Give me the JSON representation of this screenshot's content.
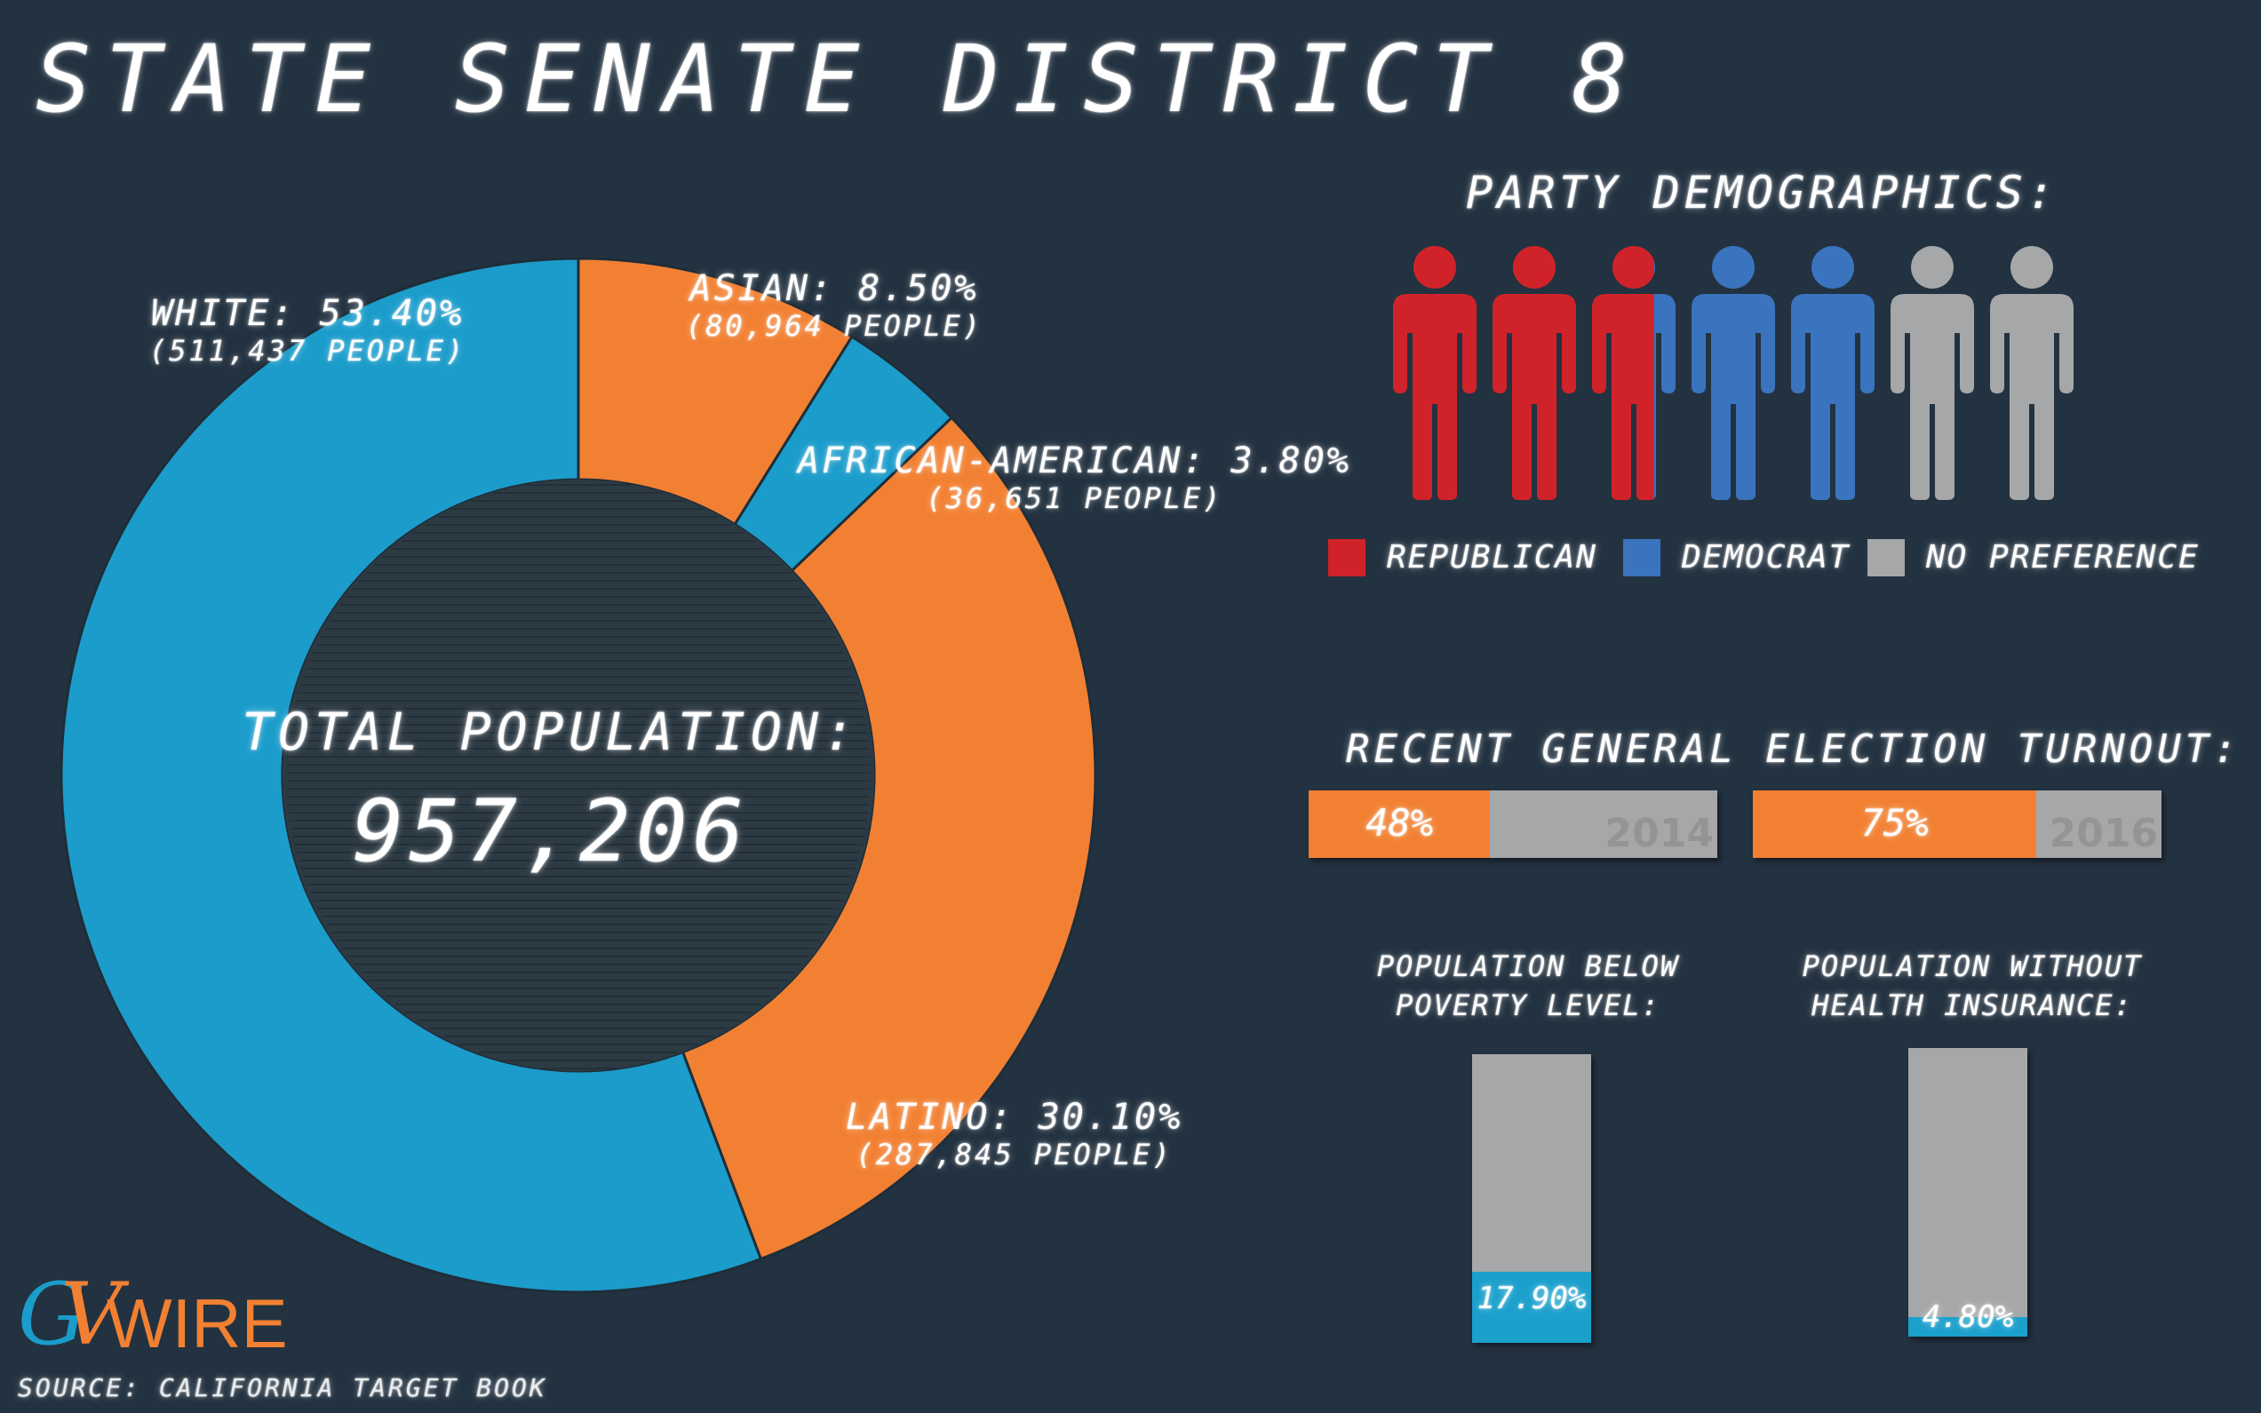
{
  "title": "STATE SENATE DISTRICT 8",
  "chart_data": [
    {
      "type": "pie",
      "center_label": "TOTAL POPULATION:",
      "center_value": "957,206",
      "slices": [
        {
          "name": "ASIAN",
          "value": 8.5,
          "pct_label": "ASIAN: 8.50%",
          "people_label": "(80,964 PEOPLE)",
          "color": "#f28032"
        },
        {
          "name": "AFRICAN-AMERICAN",
          "value": 3.8,
          "pct_label": "AFRICAN-AMERICAN: 3.80%",
          "people_label": "(36,651 PEOPLE)",
          "color": "#1b9ccb"
        },
        {
          "name": "LATINO",
          "value": 30.1,
          "pct_label": "LATINO: 30.10%",
          "people_label": "(287,845 PEOPLE)",
          "color": "#f28032"
        },
        {
          "name": "WHITE",
          "value": 53.4,
          "pct_label": "WHITE: 53.40%",
          "people_label": "(511,437 PEOPLE)",
          "color": "#1b9ccb"
        }
      ]
    },
    {
      "type": "bar",
      "title": "RECENT GENERAL ELECTION TURNOUT:",
      "categories": [
        "2014",
        "2016"
      ],
      "values": [
        48,
        75
      ],
      "value_labels": [
        "48%",
        "75%"
      ]
    },
    {
      "type": "bar",
      "categories": [
        "POPULATION BELOW POVERTY LEVEL:",
        "POPULATION WITHOUT HEALTH INSURANCE:"
      ],
      "values": [
        17.9,
        4.8
      ],
      "value_labels": [
        "17.90%",
        "4.80%"
      ]
    }
  ],
  "party": {
    "title": "PARTY DEMOGRAPHICS:",
    "figures": 7,
    "shares": [
      {
        "name": "REPUBLICAN",
        "figures": 2.7,
        "color": "#d02329"
      },
      {
        "name": "DEMOCRAT",
        "figures": 2.3,
        "color": "#3a74bf"
      },
      {
        "name": "NO PREFERENCE",
        "figures": 2.0,
        "color": "#a6a7a8"
      }
    ]
  },
  "stats": {
    "poverty_title_1": "POPULATION BELOW",
    "poverty_title_2": "POVERTY LEVEL:",
    "insurance_title_1": "POPULATION WITHOUT",
    "insurance_title_2": "HEALTH INSURANCE:"
  },
  "logo": {
    "g": "G",
    "v": "V",
    "wire": "WIRE"
  },
  "source": "SOURCE: CALIFORNIA TARGET BOOK",
  "colors": {
    "background": "#233240",
    "orange": "#f28032",
    "blue": "#1b9ccb",
    "gray": "#a6a7a8",
    "center": "#2c3a44"
  }
}
